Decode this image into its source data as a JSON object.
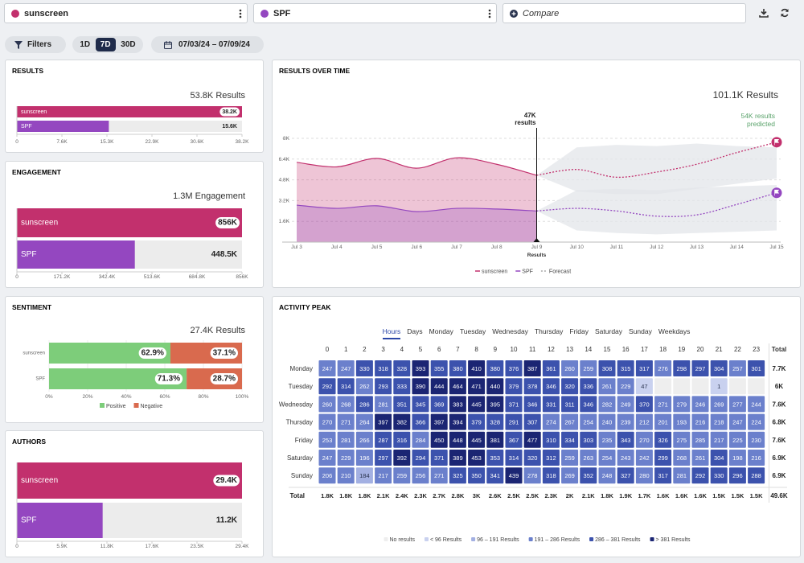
{
  "toolbar": {
    "queries": [
      {
        "label": "sunscreen",
        "color": "#c2306d"
      },
      {
        "label": "SPF",
        "color": "#9447c0"
      }
    ],
    "compare": "Compare"
  },
  "filters": {
    "filters": "Filters",
    "ranges": [
      "1D",
      "7D",
      "30D"
    ],
    "active_range": 1,
    "dates": "07/03/24 – 07/09/24"
  },
  "results": {
    "type": "bar",
    "title": "RESULTS",
    "total": "53.8K Results",
    "categories": [
      "sunscreen",
      "SPF"
    ],
    "values": [
      38200,
      15600
    ],
    "value_labels": [
      "38.2K",
      "15.6K"
    ],
    "colors": [
      "#c2306d",
      "#9447c0"
    ],
    "xlim": [
      0,
      38200
    ],
    "xticks": [
      0,
      {
        "value": 7640,
        "label": "7.6K"
      },
      {
        "value": 15280,
        "label": "15.3K"
      },
      {
        "value": 22920,
        "label": "22.9K"
      },
      {
        "value": 30560,
        "label": "30.6K"
      },
      {
        "value": 38200,
        "label": "38.2K"
      }
    ]
  },
  "engagement": {
    "type": "bar",
    "title": "ENGAGEMENT",
    "total": "1.3M Engagement",
    "categories": [
      "sunscreen",
      "SPF"
    ],
    "values": [
      856000,
      448500
    ],
    "value_labels": [
      "856K",
      "448.5K"
    ],
    "colors": [
      "#c2306d",
      "#9447c0"
    ],
    "xlim": [
      0,
      856000
    ],
    "xticks": [
      0,
      {
        "value": 171200,
        "label": "171.2K"
      },
      {
        "value": 342400,
        "label": "342.4K"
      },
      {
        "value": 513600,
        "label": "513.6K"
      },
      {
        "value": 684800,
        "label": "684.8K"
      },
      {
        "value": 856000,
        "label": "856K"
      }
    ]
  },
  "sentiment": {
    "type": "stacked-bar",
    "title": "SENTIMENT",
    "total": "27.4K Results",
    "categories": [
      "sunscreen",
      "SPF"
    ],
    "series": [
      {
        "name": "Positive",
        "color": "#7dcd7a",
        "values": [
          62.9,
          71.3
        ],
        "value_labels": [
          "62.9%",
          "71.3%"
        ]
      },
      {
        "name": "Negative",
        "color": "#d96a4e",
        "values": [
          37.1,
          28.7
        ],
        "value_labels": [
          "37.1%",
          "28.7%"
        ]
      }
    ],
    "xlim": [
      0,
      100
    ],
    "xticks": [
      {
        "value": 0,
        "label": "0%"
      },
      {
        "value": 20,
        "label": "20%"
      },
      {
        "value": 40,
        "label": "40%"
      },
      {
        "value": 60,
        "label": "60%"
      },
      {
        "value": 80,
        "label": "80%"
      },
      {
        "value": 100,
        "label": "100%"
      }
    ]
  },
  "authors": {
    "type": "bar",
    "title": "AUTHORS",
    "categories": [
      "sunscreen",
      "SPF"
    ],
    "values": [
      29400,
      11200
    ],
    "value_labels": [
      "29.4K",
      "11.2K"
    ],
    "colors": [
      "#c2306d",
      "#9447c0"
    ],
    "xlim": [
      0,
      29400
    ],
    "xticks": [
      0,
      {
        "value": 5880,
        "label": "5.9K"
      },
      {
        "value": 11760,
        "label": "11.8K"
      },
      {
        "value": 17640,
        "label": "17.6K"
      },
      {
        "value": 23520,
        "label": "23.5K"
      },
      {
        "value": 29400,
        "label": "29.4K"
      }
    ]
  },
  "results_over_time": {
    "type": "line",
    "title": "RESULTS OVER TIME",
    "total": "101.1K Results",
    "categories": [
      "Jul 3",
      "Jul 4",
      "Jul 5",
      "Jul 6",
      "Jul 7",
      "Jul 8",
      "Jul 9",
      "Jul 10",
      "Jul 11",
      "Jul 12",
      "Jul 13",
      "Jul 14",
      "Jul 15"
    ],
    "series": [
      {
        "name": "sunscreen",
        "color": "#c2306d",
        "values": [
          6150,
          5800,
          6450,
          5700,
          6500,
          6000,
          5150,
          null,
          null,
          null,
          null,
          null,
          null
        ],
        "forecast": [
          null,
          null,
          null,
          null,
          null,
          null,
          5150,
          5600,
          5000,
          5400,
          6000,
          6900,
          7700
        ],
        "forecast_high": [
          null,
          null,
          null,
          null,
          null,
          null,
          5150,
          7300,
          7500,
          7400,
          7600,
          7400,
          7300
        ],
        "forecast_low": [
          null,
          null,
          null,
          null,
          null,
          null,
          5150,
          3900,
          3700,
          3700,
          4100,
          4500,
          4900
        ]
      },
      {
        "name": "SPF",
        "color": "#9447c0",
        "values": [
          2850,
          2600,
          2800,
          2350,
          2600,
          2550,
          2400,
          null,
          null,
          null,
          null,
          null,
          null
        ],
        "forecast": [
          null,
          null,
          null,
          null,
          null,
          null,
          2400,
          2600,
          2400,
          2000,
          2100,
          2900,
          3800
        ],
        "forecast_high": [
          null,
          null,
          null,
          null,
          null,
          null,
          2400,
          4000,
          4100,
          4000,
          4200,
          4300,
          4400
        ],
        "forecast_low": [
          null,
          null,
          null,
          null,
          null,
          null,
          2400,
          900,
          700,
          600,
          700,
          800,
          900
        ]
      }
    ],
    "forecast_label": "Forecast",
    "ylim": [
      0,
      8000
    ],
    "yticks": [
      {
        "value": 1600,
        "label": "1.6K"
      },
      {
        "value": 3200,
        "label": "3.2K"
      },
      {
        "value": 4800,
        "label": "4.8K"
      },
      {
        "value": 6400,
        "label": "6.4K"
      },
      {
        "value": 8000,
        "label": "8K"
      }
    ],
    "grid": true,
    "marker": {
      "at": "Jul 9",
      "lines": [
        "47K",
        "results"
      ],
      "axis_label": "Results"
    },
    "prediction": {
      "lines": [
        "54K results",
        "predicted"
      ],
      "color": "#5aa36b"
    }
  },
  "activity": {
    "title": "ACTIVITY PEAK",
    "tabs": [
      "Hours",
      "Days",
      "Monday",
      "Tuesday",
      "Wednesday",
      "Thursday",
      "Friday",
      "Saturday",
      "Sunday",
      "Weekdays"
    ],
    "active_tab": 0,
    "hours": [
      0,
      1,
      2,
      3,
      4,
      5,
      6,
      7,
      8,
      9,
      10,
      11,
      12,
      13,
      14,
      15,
      16,
      17,
      18,
      19,
      20,
      21,
      22,
      23
    ],
    "total_label": "Total",
    "rows": [
      {
        "day": "Monday",
        "values": [
          247,
          247,
          330,
          318,
          328,
          393,
          355,
          380,
          410,
          380,
          376,
          387,
          361,
          260,
          259,
          308,
          315,
          317,
          276,
          298,
          297,
          304,
          257,
          301
        ],
        "total": "7.7K"
      },
      {
        "day": "Tuesday",
        "values": [
          292,
          314,
          262,
          293,
          333,
          390,
          444,
          464,
          471,
          440,
          379,
          378,
          346,
          320,
          336,
          261,
          229,
          47,
          null,
          null,
          null,
          1,
          null,
          null
        ],
        "total": "6K"
      },
      {
        "day": "Wednesday",
        "values": [
          260,
          268,
          286,
          281,
          351,
          345,
          369,
          383,
          445,
          395,
          371,
          346,
          331,
          311,
          346,
          282,
          249,
          370,
          271,
          279,
          246,
          269,
          277,
          244
        ],
        "total": "7.6K"
      },
      {
        "day": "Thursday",
        "values": [
          270,
          271,
          264,
          397,
          382,
          366,
          397,
          394,
          379,
          328,
          291,
          307,
          274,
          267,
          254,
          240,
          239,
          212,
          201,
          193,
          216,
          218,
          247,
          224
        ],
        "total": "6.8K"
      },
      {
        "day": "Friday",
        "values": [
          253,
          281,
          266,
          287,
          316,
          284,
          450,
          448,
          445,
          381,
          367,
          477,
          310,
          334,
          303,
          235,
          343,
          270,
          326,
          275,
          285,
          217,
          225,
          230
        ],
        "total": "7.6K"
      },
      {
        "day": "Saturday",
        "values": [
          247,
          229,
          196,
          297,
          392,
          294,
          371,
          389,
          453,
          353,
          314,
          320,
          312,
          259,
          263,
          254,
          243,
          242,
          299,
          268,
          261,
          304,
          198,
          216
        ],
        "total": "6.9K"
      },
      {
        "day": "Sunday",
        "values": [
          206,
          210,
          184,
          217,
          259,
          256,
          271,
          325,
          350,
          341,
          439,
          278,
          318,
          269,
          352,
          248,
          327,
          280,
          317,
          281,
          292,
          330,
          296,
          288
        ],
        "total": "6.9K"
      }
    ],
    "totals": [
      "1.8K",
      "1.8K",
      "1.8K",
      "2.1K",
      "2.4K",
      "2.3K",
      "2.7K",
      "2.8K",
      "3K",
      "2.6K",
      "2.5K",
      "2.5K",
      "2.3K",
      "2K",
      "2.1K",
      "1.8K",
      "1.9K",
      "1.7K",
      "1.6K",
      "1.6K",
      "1.6K",
      "1.5K",
      "1.5K",
      "1.5K"
    ],
    "grand_total": "49.6K",
    "color_scale": [
      {
        "label": "No results",
        "color": "#eeeeee"
      },
      {
        "label": "< 96 Results",
        "max": 96,
        "color": "#c9d1ef"
      },
      {
        "label": "96 – 191 Results",
        "max": 191,
        "color": "#a3b0e2"
      },
      {
        "label": "191 – 286 Results",
        "max": 286,
        "color": "#6b80cc"
      },
      {
        "label": "286 – 381 Results",
        "max": 381,
        "color": "#3c52ad"
      },
      {
        "label": "> 381 Results",
        "color": "#1b2573"
      }
    ]
  }
}
